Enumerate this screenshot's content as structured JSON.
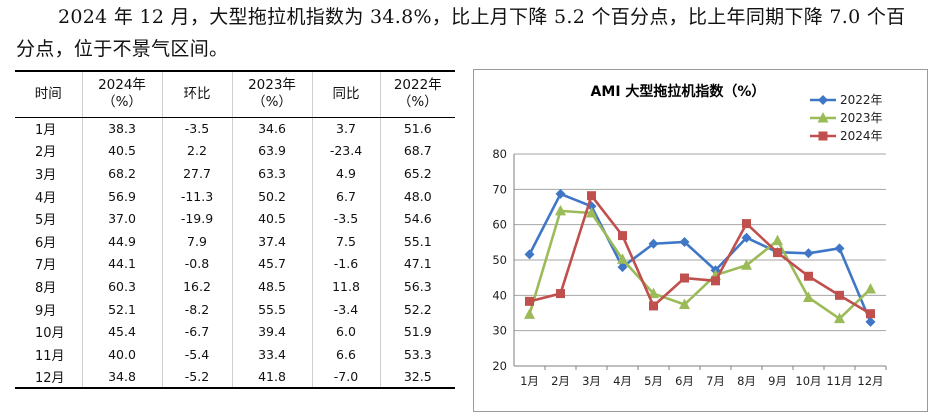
{
  "paragraph": {
    "line1": "2024 年 12 月，大型拖拉机指数为 34.8%，比上月下降 5.2 个百分点，比上年同期下降 7.0 个百",
    "line2": "分点，位于不景气区间。"
  },
  "table": {
    "headers": [
      {
        "line1": "时间",
        "line2": ""
      },
      {
        "line1": "2024年",
        "line2": "（%）"
      },
      {
        "line1": "环比",
        "line2": ""
      },
      {
        "line1": "2023年",
        "line2": "（%）"
      },
      {
        "line1": "同比",
        "line2": ""
      },
      {
        "line1": "2022年",
        "line2": "（%）"
      }
    ],
    "rows": [
      [
        "1月",
        "38.3",
        "-3.5",
        "34.6",
        "3.7",
        "51.6"
      ],
      [
        "2月",
        "40.5",
        "2.2",
        "63.9",
        "-23.4",
        "68.7"
      ],
      [
        "3月",
        "68.2",
        "27.7",
        "63.3",
        "4.9",
        "65.2"
      ],
      [
        "4月",
        "56.9",
        "-11.3",
        "50.2",
        "6.7",
        "48.0"
      ],
      [
        "5月",
        "37.0",
        "-19.9",
        "40.5",
        "-3.5",
        "54.6"
      ],
      [
        "6月",
        "44.9",
        "7.9",
        "37.4",
        "7.5",
        "55.1"
      ],
      [
        "7月",
        "44.1",
        "-0.8",
        "45.7",
        "-1.6",
        "47.1"
      ],
      [
        "8月",
        "60.3",
        "16.2",
        "48.5",
        "11.8",
        "56.3"
      ],
      [
        "9月",
        "52.1",
        "-8.2",
        "55.5",
        "-3.4",
        "52.2"
      ],
      [
        "10月",
        "45.4",
        "-6.7",
        "39.4",
        "6.0",
        "51.9"
      ],
      [
        "11月",
        "40.0",
        "-5.4",
        "33.4",
        "6.6",
        "53.3"
      ],
      [
        "12月",
        "34.8",
        "-5.2",
        "41.8",
        "-7.0",
        "32.5"
      ]
    ]
  },
  "chart_data": {
    "type": "line",
    "title": "AMI 大型拖拉机指数（%）",
    "categories": [
      "1月",
      "2月",
      "3月",
      "4月",
      "5月",
      "6月",
      "7月",
      "8月",
      "9月",
      "10月",
      "11月",
      "12月"
    ],
    "ylim": [
      20,
      80
    ],
    "yticks": [
      "20",
      "30",
      "40",
      "50",
      "60",
      "70",
      "80"
    ],
    "grid": true,
    "legend_position": "top-right",
    "series": [
      {
        "name": "2022年",
        "color": "#3f77c6",
        "marker": "diamond",
        "values": [
          51.6,
          68.7,
          65.2,
          48.0,
          54.6,
          55.1,
          47.1,
          56.3,
          52.2,
          51.9,
          53.3,
          32.5
        ]
      },
      {
        "name": "2023年",
        "color": "#9bbb59",
        "marker": "triangle",
        "values": [
          34.6,
          63.9,
          63.3,
          50.2,
          40.5,
          37.4,
          45.7,
          48.5,
          55.5,
          39.4,
          33.4,
          41.8
        ]
      },
      {
        "name": "2024年",
        "color": "#c0504d",
        "marker": "square",
        "values": [
          38.3,
          40.5,
          68.2,
          56.9,
          37.0,
          44.9,
          44.1,
          60.3,
          52.1,
          45.4,
          40.0,
          34.8
        ]
      }
    ]
  }
}
